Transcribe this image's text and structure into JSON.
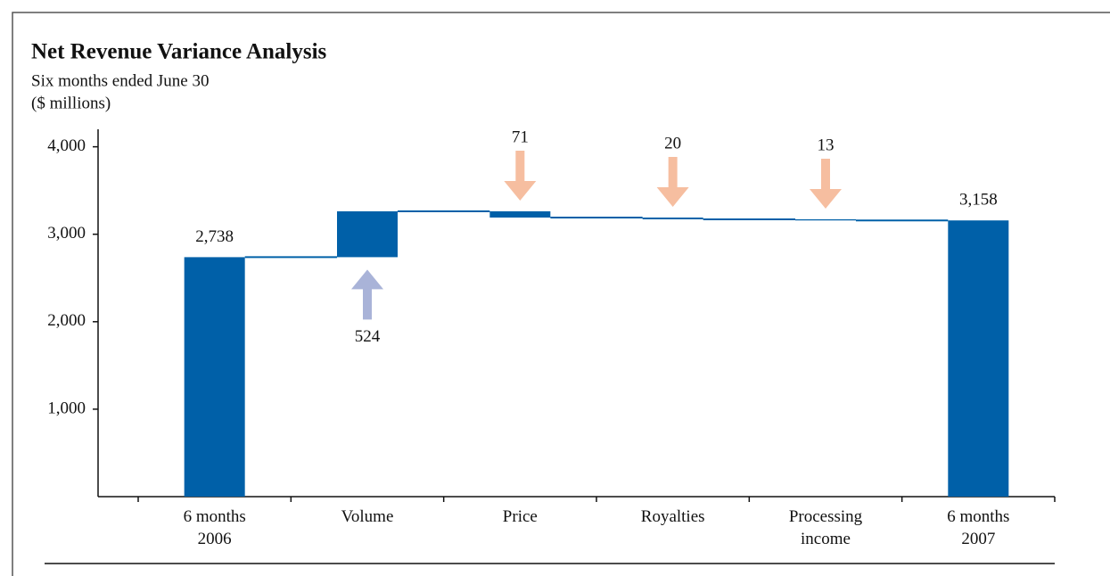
{
  "chart_data": {
    "type": "waterfall",
    "title": "Net Revenue Variance Analysis",
    "subtitle": "Six months ended June 30",
    "y_label": "($ millions)",
    "categories": [
      "6 months\n2006",
      "Volume",
      "Price",
      "Royalties",
      "Processing\nincome",
      "6 months\n2007"
    ],
    "values": [
      2738,
      524,
      -71,
      -20,
      -13,
      3158
    ],
    "value_labels": [
      "2,738",
      "524",
      "71",
      "20",
      "13",
      "3,158"
    ],
    "totals": [
      true,
      false,
      false,
      false,
      false,
      true
    ],
    "color": "#0060a8",
    "increase_arrow_color": "#a9b3d8",
    "decrease_arrow_color": "#f6bea0",
    "ylim": [
      0,
      4200
    ],
    "yticks": [
      {
        "value": 1000,
        "label": "1,000"
      },
      {
        "value": 2000,
        "label": "2,000"
      },
      {
        "value": 3000,
        "label": "3,000"
      },
      {
        "value": 4000,
        "label": "4,000"
      }
    ]
  }
}
